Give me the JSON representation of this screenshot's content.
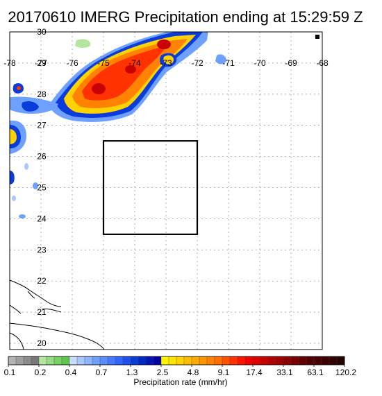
{
  "title": "20170610 IMERG Precipitation ending at 15:29:59 Z",
  "map": {
    "lon_min": -78.0,
    "lon_max": -68.0,
    "lat_min": 19.8,
    "lat_max": 30.0,
    "lon_ticks": [
      "-78",
      "-77",
      "-76",
      "-75",
      "-74",
      "-73",
      "-72",
      "-71",
      "-70",
      "-69",
      "-68"
    ],
    "lat_ticks": [
      "20",
      "21",
      "22",
      "23",
      "24",
      "25",
      "26",
      "27",
      "28",
      "29",
      "30"
    ],
    "box": {
      "lon_min": -75.0,
      "lon_max": -72.0,
      "lat_min": 23.5,
      "lat_max": 26.5
    },
    "grid": "dotted"
  },
  "colorbar": {
    "title": "Precipitation rate (mm/hr)",
    "tick_labels": [
      "0.1",
      "0.2",
      "0.4",
      "0.7",
      "1.3",
      "2.5",
      "4.8",
      "9.1",
      "17.4",
      "33.1",
      "63.1",
      "120.2"
    ],
    "colors": [
      "#b4b4b4",
      "#a0a0a0",
      "#8c8c8c",
      "#787878",
      "#b4e6a0",
      "#96dc82",
      "#78d264",
      "#5ac846",
      "#c8dcff",
      "#aac8ff",
      "#8cb4ff",
      "#6ea0ff",
      "#5a8cff",
      "#4678ff",
      "#3264ff",
      "#1e50f0",
      "#0a3cdc",
      "#0028c8",
      "#0014b4",
      "#0000a0",
      "#fff500",
      "#ffe600",
      "#ffd200",
      "#ffbe00",
      "#ffaa00",
      "#ff9600",
      "#ff8200",
      "#ff6e00",
      "#ff5000",
      "#ff3200",
      "#ff1400",
      "#f00000",
      "#dc0000",
      "#c80000",
      "#b40000",
      "#a00000",
      "#8c0000",
      "#780000",
      "#640000",
      "#500000",
      "#460000",
      "#3c0000",
      "#320000",
      "#280000"
    ]
  }
}
